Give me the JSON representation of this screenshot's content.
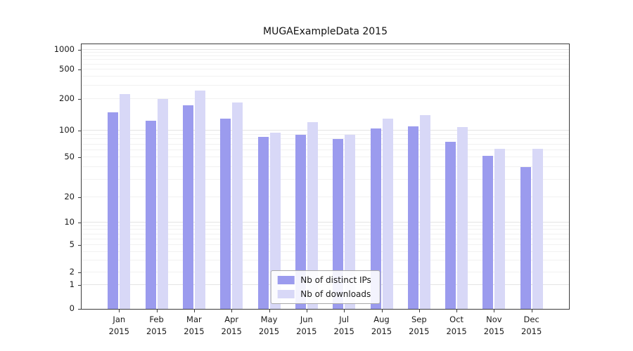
{
  "chart_data": {
    "type": "bar",
    "title": "MUGAExampleData 2015",
    "year_label": "2015",
    "categories": [
      "Jan",
      "Feb",
      "Mar",
      "Apr",
      "May",
      "Jun",
      "Jul",
      "Aug",
      "Sep",
      "Oct",
      "Nov",
      "Dec"
    ],
    "series": [
      {
        "name": "Nb of distinct IPs",
        "color": "#9b9bee",
        "values": [
          150,
          125,
          175,
          130,
          85,
          90,
          80,
          105,
          110,
          75,
          52,
          40
        ]
      },
      {
        "name": "Nb of downloads",
        "color": "#d8d8f7",
        "values": [
          235,
          200,
          260,
          185,
          95,
          120,
          90,
          130,
          140,
          108,
          62,
          62
        ]
      }
    ],
    "yticks": [
      0,
      1,
      2,
      5,
      10,
      20,
      50,
      100,
      200,
      500,
      1000
    ],
    "yscale": "symlog",
    "ylim": [
      0,
      1300
    ],
    "grid": true,
    "legend_position": "lower center"
  }
}
